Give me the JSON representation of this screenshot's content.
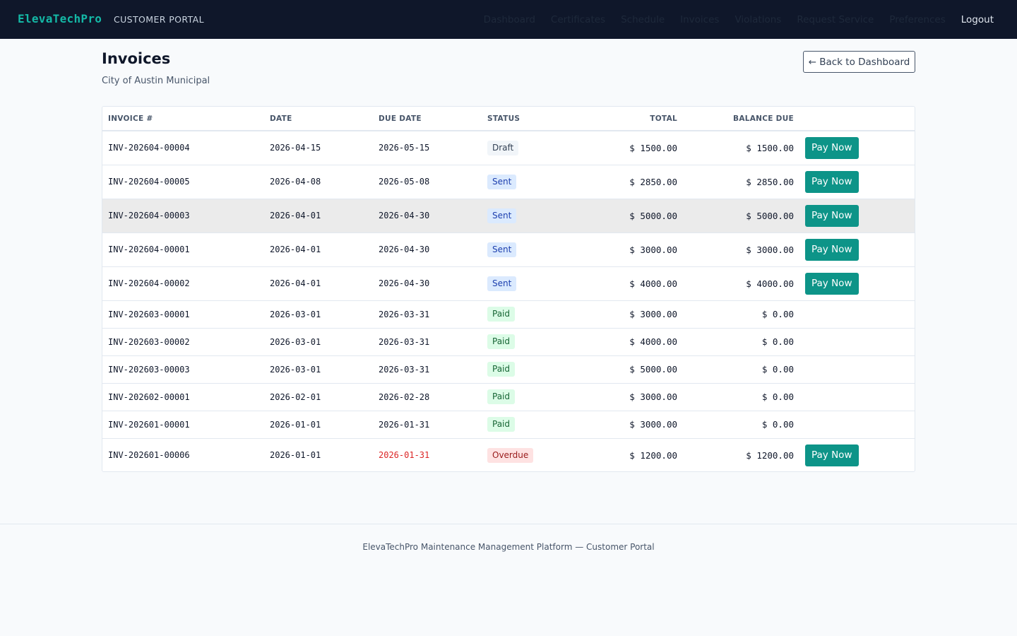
{
  "brand": "ElevaTechPro",
  "portal_label": "CUSTOMER PORTAL",
  "nav": {
    "items": [
      "Dashboard",
      "Certificates",
      "Schedule",
      "Invoices",
      "Violations",
      "Request Service",
      "Preferences"
    ],
    "logout": "Logout"
  },
  "page": {
    "title": "Invoices",
    "subtitle": "City of Austin Municipal",
    "back_button": "← Back to Dashboard"
  },
  "table": {
    "headers": {
      "invoice": "INVOICE #",
      "date": "DATE",
      "due_date": "DUE DATE",
      "status": "STATUS",
      "total": "TOTAL",
      "balance": "BALANCE DUE"
    },
    "pay_label": "Pay Now",
    "rows": [
      {
        "invoice": "INV-202604-00004",
        "date": "2026-04-15",
        "due": "2026-05-15",
        "status": "Draft",
        "total": "$ 1500.00",
        "balance": "$ 1500.00"
      },
      {
        "invoice": "INV-202604-00005",
        "date": "2026-04-08",
        "due": "2026-05-08",
        "status": "Sent",
        "total": "$ 2850.00",
        "balance": "$ 2850.00"
      },
      {
        "invoice": "INV-202604-00003",
        "date": "2026-04-01",
        "due": "2026-04-30",
        "status": "Sent",
        "total": "$ 5000.00",
        "balance": "$ 5000.00"
      },
      {
        "invoice": "INV-202604-00001",
        "date": "2026-04-01",
        "due": "2026-04-30",
        "status": "Sent",
        "total": "$ 3000.00",
        "balance": "$ 3000.00"
      },
      {
        "invoice": "INV-202604-00002",
        "date": "2026-04-01",
        "due": "2026-04-30",
        "status": "Sent",
        "total": "$ 4000.00",
        "balance": "$ 4000.00"
      },
      {
        "invoice": "INV-202603-00001",
        "date": "2026-03-01",
        "due": "2026-03-31",
        "status": "Paid",
        "total": "$ 3000.00",
        "balance": "$ 0.00"
      },
      {
        "invoice": "INV-202603-00002",
        "date": "2026-03-01",
        "due": "2026-03-31",
        "status": "Paid",
        "total": "$ 4000.00",
        "balance": "$ 0.00"
      },
      {
        "invoice": "INV-202603-00003",
        "date": "2026-03-01",
        "due": "2026-03-31",
        "status": "Paid",
        "total": "$ 5000.00",
        "balance": "$ 0.00"
      },
      {
        "invoice": "INV-202602-00001",
        "date": "2026-02-01",
        "due": "2026-02-28",
        "status": "Paid",
        "total": "$ 3000.00",
        "balance": "$ 0.00"
      },
      {
        "invoice": "INV-202601-00001",
        "date": "2026-01-01",
        "due": "2026-01-31",
        "status": "Paid",
        "total": "$ 3000.00",
        "balance": "$ 0.00"
      },
      {
        "invoice": "INV-202601-00006",
        "date": "2026-01-01",
        "due": "2026-01-31",
        "status": "Overdue",
        "total": "$ 1200.00",
        "balance": "$ 1200.00"
      }
    ]
  },
  "footer": "ElevaTechPro Maintenance Management Platform — Customer Portal",
  "colors": {
    "topbar": "#0f172a",
    "brand": "#14b8a6",
    "pay_button": "#0d9488",
    "overdue": "#dc2626"
  }
}
